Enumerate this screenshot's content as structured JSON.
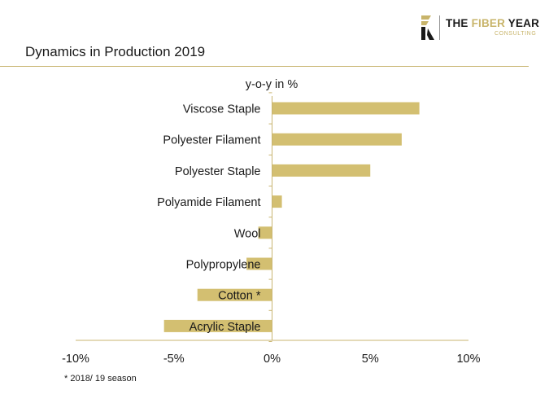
{
  "header": {
    "title": "Dynamics in Production 2019",
    "logo": {
      "main_prefix": "THE ",
      "main_accent": "FIBER",
      "main_suffix": " YEAR",
      "sub": "CONSULTING",
      "brand_color": "#c8b46a"
    }
  },
  "chart_data": {
    "type": "bar",
    "orientation": "horizontal",
    "title": "",
    "ylabel": "y-o-y in %",
    "xlabel": "",
    "categories": [
      "Viscose Staple",
      "Polyester Filament",
      "Polyester Staple",
      "Polyamide Filament",
      "Wool",
      "Polypropylene",
      "Cotton *",
      "Acrylic Staple"
    ],
    "values": [
      7.5,
      6.6,
      5.0,
      0.5,
      -0.7,
      -1.3,
      -3.8,
      -5.5
    ],
    "xlim": [
      -10,
      10
    ],
    "xticks": [
      -10,
      -5,
      0,
      5,
      10
    ],
    "xtick_labels": [
      "-10%",
      "-5%",
      "0%",
      "5%",
      "10%"
    ],
    "bar_color": "#d3bf71",
    "grid": false,
    "legend": "none"
  },
  "footnote": "* 2018/ 19 season"
}
